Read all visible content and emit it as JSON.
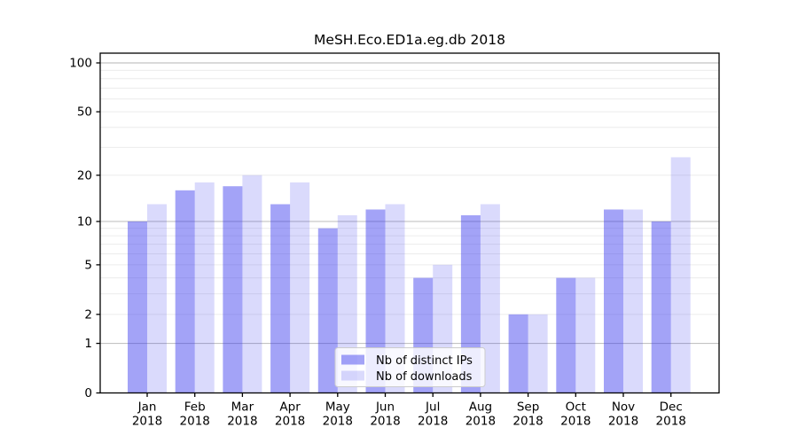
{
  "chart_data": {
    "type": "bar",
    "title": "MeSH.Eco.ED1a.eg.db 2018",
    "categories": [
      "Jan",
      "Feb",
      "Mar",
      "Apr",
      "May",
      "Jun",
      "Jul",
      "Aug",
      "Sep",
      "Oct",
      "Nov",
      "Dec"
    ],
    "x_year": "2018",
    "series": [
      {
        "name": "Nb of distinct IPs",
        "color": "#a4a4f5",
        "fill": "rgba(51,51,238,0.45)",
        "values": [
          10,
          16,
          17,
          13,
          9,
          12,
          4,
          11,
          2,
          4,
          12,
          10
        ]
      },
      {
        "name": "Nb of downloads",
        "color": "#dcdcf9",
        "fill": "rgba(51,51,238,0.18)",
        "values": [
          13,
          18,
          20,
          18,
          11,
          13,
          5,
          13,
          2,
          4,
          12,
          26
        ]
      }
    ],
    "y_axis": {
      "scale": "log1p",
      "ylim": [
        0,
        115
      ],
      "ticks": [
        0,
        1,
        2,
        5,
        10,
        20,
        50,
        100
      ],
      "major_gridlines": [
        1,
        10,
        100
      ],
      "minor_gridlines": [
        2,
        3,
        4,
        5,
        6,
        7,
        8,
        9,
        20,
        30,
        40,
        50,
        60,
        70,
        80,
        90
      ]
    },
    "xlabel": "",
    "ylabel": "",
    "grid": true,
    "legend": {
      "position": "lower center",
      "frame": true,
      "entries": [
        "Nb of distinct IPs",
        "Nb of downloads"
      ]
    },
    "colors": {
      "axis": "#000000",
      "major_gridline": "#c3c3c3",
      "minor_gridline": "#ececec",
      "legend_border": "#cccccc",
      "legend_background": "rgba(255,255,255,0.8)"
    }
  }
}
